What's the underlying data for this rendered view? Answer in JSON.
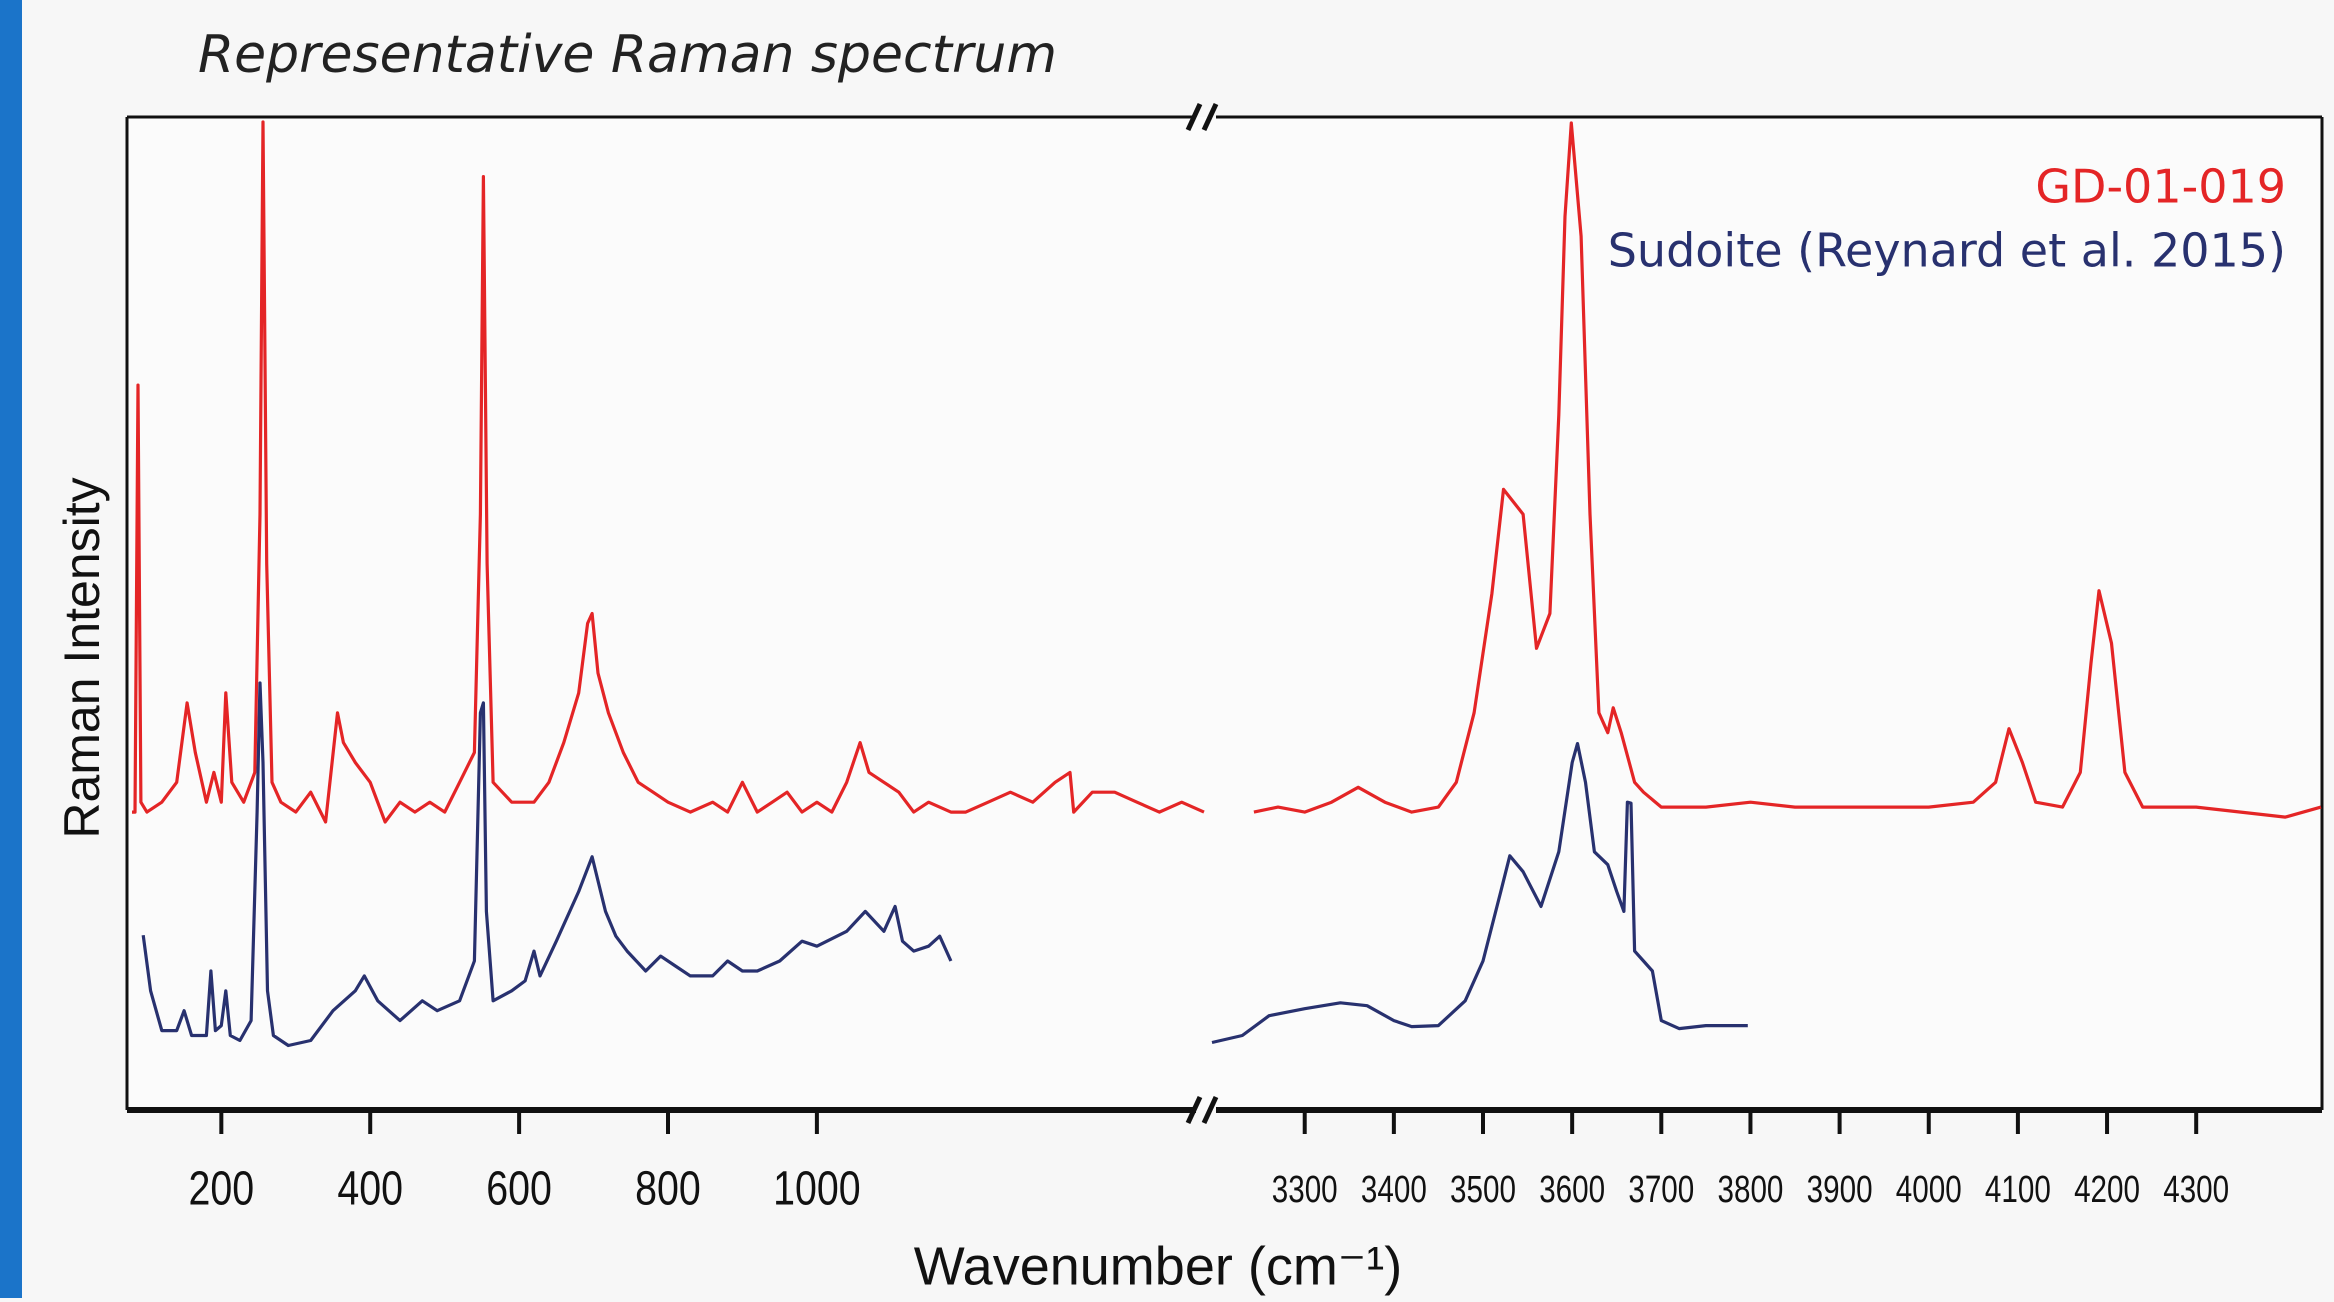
{
  "chart_data": {
    "type": "line",
    "title": "Representative Raman spectrum",
    "xlabel": "Wavenumber (cm⁻¹)",
    "ylabel": "Raman Intensity",
    "xlim": [
      [
        80,
        1520
      ],
      [
        3196,
        4440
      ]
    ],
    "xticks": [
      [
        200,
        400,
        600,
        800,
        1000
      ],
      [
        3300,
        3400,
        3500,
        3600,
        3700,
        3800,
        3900,
        4000,
        4100,
        4200,
        4300
      ]
    ],
    "ylim": [
      0,
      100
    ],
    "legend": "upper right",
    "series": [
      {
        "name": "GD-01-019",
        "color": "#e42526",
        "x": [
          80,
          84,
          88,
          92,
          100,
          120,
          140,
          154,
          165,
          180,
          190,
          200,
          206,
          214,
          230,
          245,
          252,
          256,
          261,
          268,
          280,
          300,
          320,
          340,
          356,
          364,
          380,
          400,
          420,
          440,
          460,
          480,
          500,
          520,
          540,
          548,
          552,
          557,
          565,
          590,
          620,
          640,
          660,
          680,
          692,
          698,
          706,
          720,
          740,
          760,
          780,
          800,
          830,
          860,
          880,
          900,
          920,
          940,
          960,
          980,
          1000,
          1020,
          1040,
          1058,
          1070,
          1090,
          1110,
          1130,
          1150,
          1180,
          1200,
          1230,
          1260,
          1290,
          1320,
          1340,
          1345,
          1370,
          1400,
          1430,
          1460,
          1490,
          1520,
          null,
          3243,
          3270,
          3300,
          3330,
          3360,
          3390,
          3420,
          3450,
          3470,
          3490,
          3510,
          3523,
          3545,
          3560,
          3575,
          3585,
          3592,
          3599,
          3610,
          3620,
          3630,
          3640,
          3646,
          3655,
          3670,
          3680,
          3700,
          3750,
          3800,
          3850,
          3900,
          3950,
          4000,
          4050,
          4075,
          4090,
          4105,
          4120,
          4150,
          4170,
          4182,
          4191,
          4205,
          4220,
          4240,
          4300,
          4350,
          4400,
          4440
        ],
        "values": [
          30,
          30,
          73,
          31,
          30,
          31,
          33,
          41,
          36,
          31,
          34,
          31,
          42,
          33,
          31,
          34,
          60,
          99.5,
          55,
          33,
          31,
          30,
          32,
          29,
          40,
          37,
          35,
          33,
          29,
          31,
          30,
          31,
          30,
          33,
          36,
          60,
          94,
          55,
          33,
          31,
          31,
          33,
          37,
          42,
          49,
          50,
          44,
          40,
          36,
          33,
          32,
          31,
          30,
          31,
          30,
          33,
          30,
          31,
          32,
          30,
          31,
          30,
          33,
          37,
          34,
          33,
          32,
          30,
          31,
          30,
          30,
          31,
          32,
          31,
          33,
          34,
          30,
          32,
          32,
          31,
          30,
          31,
          30,
          null,
          30,
          30.5,
          30,
          31,
          32.5,
          31,
          30,
          30.5,
          33,
          40,
          52,
          62.5,
          60,
          46.5,
          50,
          70,
          90,
          99.4,
          88,
          60,
          40,
          38,
          40.5,
          38,
          33,
          32,
          30.5,
          30.5,
          31,
          30.5,
          30.5,
          30.5,
          30.5,
          31,
          33,
          38.4,
          35,
          31,
          30.5,
          34,
          45,
          52.3,
          47,
          34,
          30.5,
          30.5,
          30,
          29.5,
          30.5
        ]
      },
      {
        "name": "Sudoite (Reynard et al. 2015)",
        "color": "#28316f",
        "x": [
          95,
          105,
          120,
          140,
          150,
          160,
          180,
          186,
          192,
          200,
          206,
          212,
          225,
          240,
          248,
          252,
          256,
          262,
          270,
          290,
          320,
          350,
          380,
          392,
          410,
          440,
          470,
          490,
          520,
          540,
          548,
          552,
          556,
          565,
          590,
          608,
          620,
          628,
          650,
          680,
          698,
          716,
          730,
          745,
          770,
          790,
          810,
          830,
          860,
          880,
          900,
          920,
          950,
          980,
          1000,
          1040,
          1065,
          1090,
          1105,
          1115,
          1130,
          1150,
          1165,
          1180,
          null,
          3196,
          3230,
          3260,
          3300,
          3340,
          3370,
          3400,
          3420,
          3450,
          3480,
          3500,
          3520,
          3530,
          3545,
          3565,
          3585,
          3600,
          3606,
          3615,
          3625,
          3640,
          3650,
          3658,
          3662,
          3666,
          3670,
          3680,
          3690,
          3700,
          3720,
          3750,
          3797
        ],
        "values": [
          17.6,
          12,
          8,
          8,
          10,
          7.5,
          7.5,
          14,
          8,
          8.5,
          12,
          7.5,
          7,
          9,
          30,
          43,
          35,
          12,
          7.5,
          6.5,
          7,
          10,
          12,
          13.5,
          11,
          9,
          11,
          10,
          11,
          15,
          40,
          41,
          20,
          11,
          12,
          13,
          16,
          13.5,
          17,
          22,
          25.5,
          20,
          17.5,
          16,
          14,
          15.5,
          14.5,
          13.5,
          13.5,
          15,
          14,
          14,
          15,
          17,
          16.5,
          18,
          20,
          18,
          20.5,
          17,
          16,
          16.5,
          17.5,
          15,
          null,
          6.8,
          7.5,
          9.5,
          10.2,
          10.8,
          10.5,
          9,
          8.4,
          8.5,
          11,
          15,
          22,
          25.6,
          24,
          20.5,
          26,
          35,
          36.9,
          33,
          26,
          24.7,
          22,
          20,
          31,
          30.9,
          16,
          15,
          14,
          9,
          8.2,
          8.5,
          8.5
        ]
      }
    ]
  }
}
